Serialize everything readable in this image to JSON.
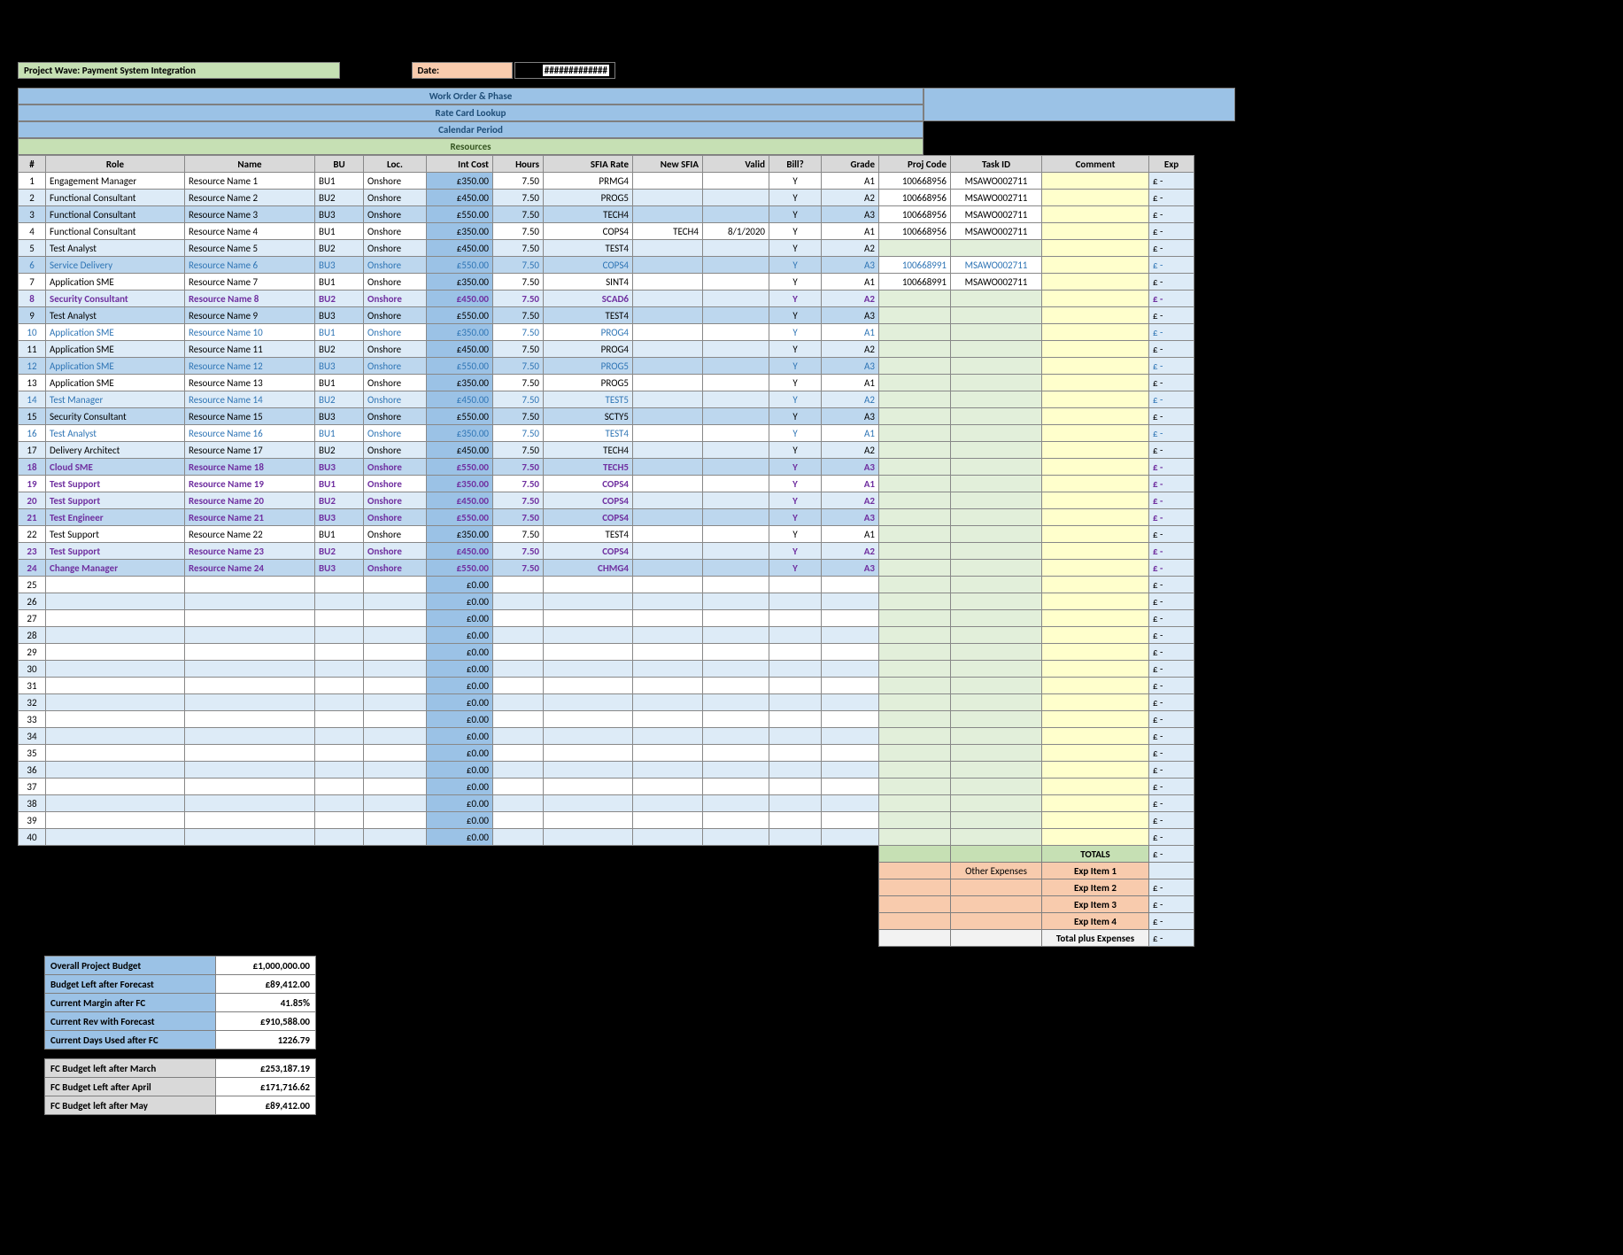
{
  "title": "Project Wave: Payment System Integration",
  "date_label": "Date:",
  "date_value": "#############",
  "banners": {
    "work_order": "Work Order & Phase",
    "rate_card": "Rate Card Lookup",
    "calendar": "Calendar Period",
    "resources": "Resources"
  },
  "headers": {
    "num": "#",
    "role": "Role",
    "name": "Name",
    "bu": "BU",
    "loc": "Loc.",
    "cost": "Int Cost",
    "hours": "Hours",
    "rate": "SFIA Rate",
    "nsfia": "New SFIA",
    "valid": "Valid",
    "bill": "Bill?",
    "grade": "Grade",
    "proj": "Proj Code",
    "task": "Task ID",
    "cmt": "Comment",
    "exp": "Exp"
  },
  "bu_cycle": [
    "BU1",
    "BU2",
    "BU3"
  ],
  "loc_value": "Onshore",
  "cost_cycle": [
    "£350.00",
    "£450.00",
    "£550.00"
  ],
  "grade_cycle": [
    "A1",
    "A2",
    "A3"
  ],
  "hours_val": "7.50",
  "bill_val": "Y",
  "empty_cost": "£0.00",
  "exp_placeholder": "£   -",
  "rows": [
    {
      "n": 1,
      "roleKey": "engagement_mgr",
      "rate": "PRMG4",
      "proj": "100668956",
      "task": "MSAWO002711"
    },
    {
      "n": 2,
      "roleKey": "functional_consultant",
      "rate": "PROG5",
      "proj": "100668956",
      "task": "MSAWO002711"
    },
    {
      "n": 3,
      "roleKey": "functional_consultant",
      "rate": "TECH4",
      "proj": "100668956",
      "task": "MSAWO002711"
    },
    {
      "n": 4,
      "roleKey": "functional_consultant",
      "rate": "COPS4",
      "nsfia": "TECH4",
      "valid": "8/1/2020",
      "proj": "100668956",
      "task": "MSAWO002711"
    },
    {
      "n": 5,
      "roleKey": "test_analyst",
      "rate": "TEST4"
    },
    {
      "n": 6,
      "roleKey": "service_delivery",
      "rate": "COPS4",
      "proj": "100668991",
      "task": "MSAWO002711",
      "style": "blue"
    },
    {
      "n": 7,
      "roleKey": "application_sme",
      "rate": "SINT4",
      "proj": "100668991",
      "task": "MSAWO002711"
    },
    {
      "n": 8,
      "roleKey": "security_consultant",
      "rate": "SCAD6",
      "style": "purple"
    },
    {
      "n": 9,
      "roleKey": "test_analyst",
      "rate": "TEST4"
    },
    {
      "n": 10,
      "roleKey": "application_sme",
      "rate": "PROG4",
      "style": "blue"
    },
    {
      "n": 11,
      "roleKey": "application_sme",
      "rate": "PROG4"
    },
    {
      "n": 12,
      "roleKey": "application_sme",
      "rate": "PROG5",
      "style": "blue"
    },
    {
      "n": 13,
      "roleKey": "application_sme",
      "rate": "PROG5"
    },
    {
      "n": 14,
      "roleKey": "test_manager",
      "rate": "TEST5",
      "style": "blue"
    },
    {
      "n": 15,
      "roleKey": "security_consultant",
      "rate": "SCTY5"
    },
    {
      "n": 16,
      "roleKey": "test_analyst",
      "rate": "TEST4",
      "style": "blue"
    },
    {
      "n": 17,
      "roleKey": "delivery_architect",
      "rate": "TECH4"
    },
    {
      "n": 18,
      "roleKey": "cloud_sme",
      "rate": "TECH5",
      "style": "purple"
    },
    {
      "n": 19,
      "roleKey": "test_support",
      "rate": "COPS4",
      "style": "purple"
    },
    {
      "n": 20,
      "roleKey": "test_support",
      "rate": "COPS4",
      "style": "purple"
    },
    {
      "n": 21,
      "roleKey": "test_engineer",
      "rate": "COPS4",
      "style": "purple"
    },
    {
      "n": 22,
      "roleKey": "test_support",
      "rate": "TEST4"
    },
    {
      "n": 23,
      "roleKey": "test_support",
      "rate": "COPS4",
      "style": "purple"
    },
    {
      "n": 24,
      "roleKey": "change_manager",
      "rate": "CHMG4",
      "style": "purple"
    }
  ],
  "roles": {
    "engagement_mgr": "Engagement Manager",
    "functional_consultant": "Functional Consultant",
    "test_analyst": "Test Analyst",
    "service_delivery": "Service Delivery",
    "application_sme": "Application SME",
    "security_consultant": "Security Consultant",
    "test_manager": "Test Manager",
    "delivery_architect": "Delivery Architect",
    "cloud_sme": "Cloud SME",
    "test_support": "Test Support",
    "test_engineer": "Test Engineer",
    "change_manager": "Change Manager"
  },
  "name_prefix": "Resource Name ",
  "empty_rows_from": 25,
  "empty_rows_to": 40,
  "summary1": [
    {
      "label": "Overall Project Budget",
      "val": "£1,000,000.00"
    },
    {
      "label": "Budget Left after Forecast",
      "val": "£89,412.00"
    },
    {
      "label": "Current Margin after FC",
      "val": "41.85%"
    },
    {
      "label": "Current Rev with Forecast",
      "val": "£910,588.00"
    },
    {
      "label": "Current Days Used after FC",
      "val": "1226.79"
    }
  ],
  "summary2": [
    {
      "label": "FC Budget left after March",
      "val": "£253,187.19"
    },
    {
      "label": "FC Budget Left after April",
      "val": "£171,716.62"
    },
    {
      "label": "FC Budget left after May",
      "val": "£89,412.00"
    }
  ],
  "totals": {
    "totals_label": "TOTALS",
    "other_exp": "Other Expenses",
    "items": [
      "Exp Item 1",
      "Exp Item 2",
      "Exp Item 3",
      "Exp Item 4"
    ],
    "total_plus": "Total plus Expenses"
  },
  "colors": {
    "green": "#c6e0b4",
    "blue": "#9bc2e6",
    "orange": "#f8cbad",
    "lightblue": "#ddebf7",
    "midblue": "#bdd7ee",
    "yellow": "#ffffcc",
    "lightgreen": "#e2efda",
    "grey": "#d9d9d9"
  }
}
